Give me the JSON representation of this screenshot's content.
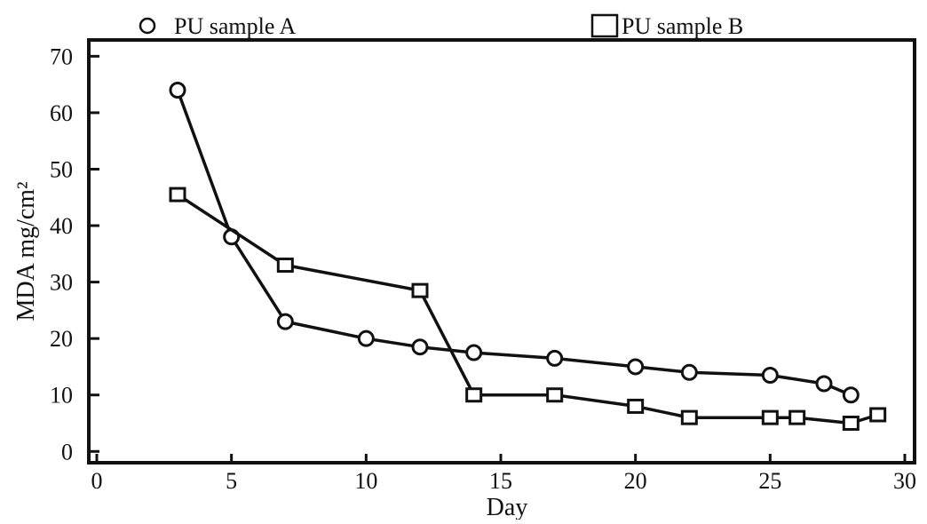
{
  "chart_data": {
    "type": "line",
    "title": "",
    "xlabel": "Day",
    "ylabel": "MDA mg/cm²",
    "xlim": [
      0,
      30
    ],
    "ylim": [
      -2,
      71
    ],
    "xticks": [
      0,
      5,
      10,
      15,
      20,
      25,
      30
    ],
    "yticks": [
      0,
      10,
      20,
      30,
      40,
      50,
      60,
      70
    ],
    "grid": false,
    "legend_position": "top",
    "series": [
      {
        "name": "PU sample A",
        "marker": "circle",
        "x": [
          3,
          5,
          7,
          10,
          12,
          14,
          17,
          20,
          22,
          25,
          27,
          28
        ],
        "y": [
          64,
          38,
          23,
          20,
          18.5,
          17.5,
          16.5,
          15,
          14,
          13.5,
          12,
          10
        ]
      },
      {
        "name": "PU sample B",
        "marker": "square",
        "x": [
          3,
          7,
          12,
          14,
          17,
          20,
          22,
          25,
          26,
          28,
          29
        ],
        "y": [
          45.5,
          33,
          28.5,
          10,
          10,
          8,
          6,
          6,
          6,
          5,
          6.5
        ]
      }
    ]
  }
}
